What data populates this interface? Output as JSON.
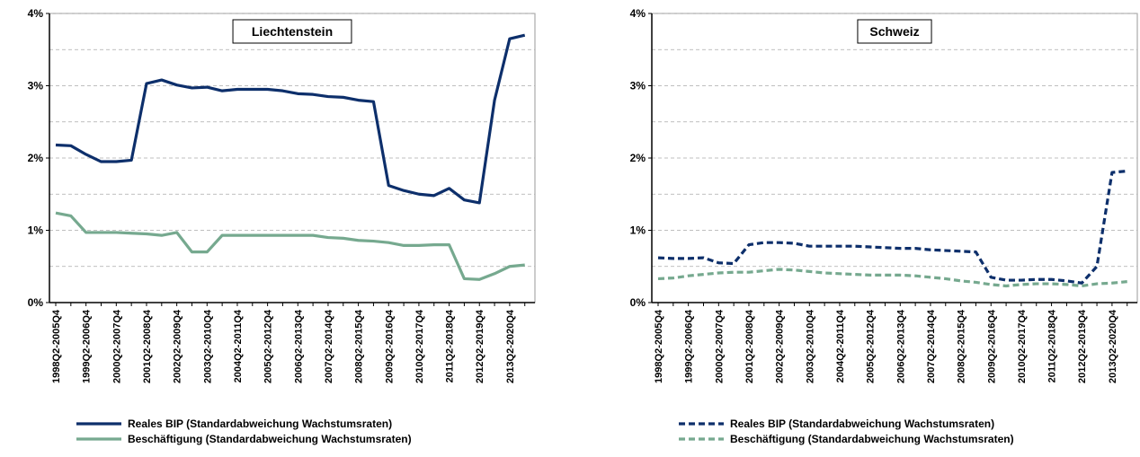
{
  "chart_data": [
    {
      "type": "line",
      "title": "Liechtenstein",
      "line_style": "solid",
      "categories": [
        "1998Q2-2005Q4",
        null,
        "1999Q2-2006Q4",
        null,
        "2000Q2-2007Q4",
        null,
        "2001Q2-2008Q4",
        null,
        "2002Q2-2009Q4",
        null,
        "2003Q2-2010Q4",
        null,
        "2004Q2-2011Q4",
        null,
        "2005Q2-2012Q4",
        null,
        "2006Q2-2013Q4",
        null,
        "2007Q2-2014Q4",
        null,
        "2008Q2-2015Q4",
        null,
        "2009Q2-2016Q4",
        null,
        "2010Q2-2017Q4",
        null,
        "2011Q2-2018Q4",
        null,
        "2012Q2-2019Q4",
        null,
        "2013Q2-2020Q4",
        null
      ],
      "series": [
        {
          "name": "Reales BIP (Standardabweichung Wachstumsraten)",
          "color": "#0d2f6b",
          "values": [
            2.18,
            2.17,
            2.05,
            1.95,
            1.95,
            1.97,
            3.03,
            3.08,
            3.01,
            2.97,
            2.98,
            2.93,
            2.95,
            2.95,
            2.95,
            2.93,
            2.89,
            2.88,
            2.85,
            2.84,
            2.8,
            2.78,
            1.62,
            1.55,
            1.5,
            1.48,
            1.58,
            1.42,
            1.38,
            2.8,
            3.65,
            3.7
          ]
        },
        {
          "name": "Beschäftigung (Standardabweichung Wachstumsraten)",
          "color": "#76a98f",
          "values": [
            1.24,
            1.2,
            0.97,
            0.97,
            0.97,
            0.96,
            0.95,
            0.93,
            0.97,
            0.7,
            0.7,
            0.93,
            0.93,
            0.93,
            0.93,
            0.93,
            0.93,
            0.93,
            0.9,
            0.89,
            0.86,
            0.85,
            0.83,
            0.79,
            0.79,
            0.8,
            0.8,
            0.33,
            0.32,
            0.4,
            0.5,
            0.52
          ]
        }
      ],
      "ylim": [
        0,
        4
      ],
      "yticks": [
        {
          "value": 0,
          "label": "0%"
        },
        {
          "value": 1,
          "label": "1%"
        },
        {
          "value": 2,
          "label": "2%"
        },
        {
          "value": 3,
          "label": "3%"
        },
        {
          "value": 4,
          "label": "4%"
        }
      ],
      "minor_grid": [
        0.5,
        1.5,
        2.5,
        3.5
      ],
      "grid": true
    },
    {
      "type": "line",
      "title": "Schweiz",
      "line_style": "dashed",
      "categories": [
        "1998Q2-2005Q4",
        null,
        "1999Q2-2006Q4",
        null,
        "2000Q2-2007Q4",
        null,
        "2001Q2-2008Q4",
        null,
        "2002Q2-2009Q4",
        null,
        "2003Q2-2010Q4",
        null,
        "2004Q2-2011Q4",
        null,
        "2005Q2-2012Q4",
        null,
        "2006Q2-2013Q4",
        null,
        "2007Q2-2014Q4",
        null,
        "2008Q2-2015Q4",
        null,
        "2009Q2-2016Q4",
        null,
        "2010Q2-2017Q4",
        null,
        "2011Q2-2018Q4",
        null,
        "2012Q2-2019Q4",
        null,
        "2013Q2-2020Q4",
        null
      ],
      "series": [
        {
          "name": "Reales BIP (Standardabweichung Wachstumsraten)",
          "color": "#0d2f6b",
          "values": [
            0.62,
            0.61,
            0.61,
            0.62,
            0.55,
            0.54,
            0.8,
            0.83,
            0.83,
            0.82,
            0.78,
            0.78,
            0.78,
            0.78,
            0.77,
            0.76,
            0.75,
            0.75,
            0.73,
            0.72,
            0.71,
            0.7,
            0.35,
            0.31,
            0.31,
            0.32,
            0.32,
            0.3,
            0.27,
            0.5,
            1.8,
            1.82
          ]
        },
        {
          "name": "Beschäftigung (Standardabweichung Wachstumsraten)",
          "color": "#76a98f",
          "values": [
            0.33,
            0.34,
            0.37,
            0.39,
            0.41,
            0.42,
            0.42,
            0.44,
            0.46,
            0.45,
            0.43,
            0.41,
            0.4,
            0.39,
            0.38,
            0.38,
            0.38,
            0.37,
            0.35,
            0.33,
            0.3,
            0.28,
            0.25,
            0.23,
            0.25,
            0.26,
            0.26,
            0.25,
            0.23,
            0.26,
            0.27,
            0.29
          ]
        }
      ],
      "ylim": [
        0,
        4
      ],
      "yticks": [
        {
          "value": 0,
          "label": "0%"
        },
        {
          "value": 1,
          "label": "1%"
        },
        {
          "value": 2,
          "label": "2%"
        },
        {
          "value": 3,
          "label": "3%"
        },
        {
          "value": 4,
          "label": "4%"
        }
      ],
      "minor_grid": [
        0.5,
        1.5,
        2.5,
        3.5
      ],
      "grid": true
    }
  ]
}
